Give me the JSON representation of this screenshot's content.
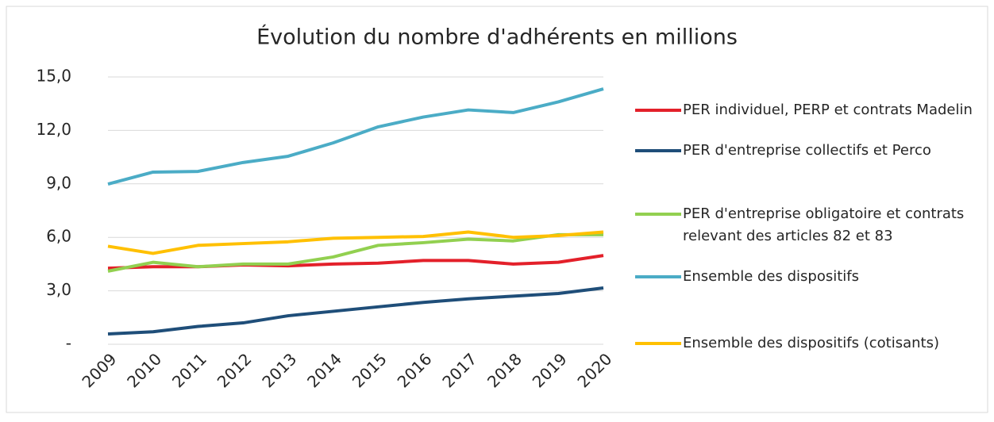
{
  "chart_data": {
    "type": "line",
    "title": "Évolution du nombre d'adhérents en millions",
    "categories": [
      "2009",
      "2010",
      "2011",
      "2012",
      "2013",
      "2014",
      "2015",
      "2016",
      "2017",
      "2018",
      "2019",
      "2020"
    ],
    "series": [
      {
        "name": "PER individuel, PERP et contrats Madelin",
        "color": "#e3202a",
        "values": [
          4.27,
          4.35,
          4.35,
          4.45,
          4.4,
          4.5,
          4.55,
          4.7,
          4.7,
          4.5,
          4.6,
          4.98
        ]
      },
      {
        "name": "PER d'entreprise collectifs et Perco",
        "color": "#1f4e79",
        "values": [
          0.58,
          0.7,
          1.0,
          1.2,
          1.6,
          1.85,
          2.1,
          2.35,
          2.55,
          2.7,
          2.85,
          3.16
        ]
      },
      {
        "name": "PER d'entreprise obligatoire et contrats relevant des articles 82 et 83",
        "color": "#92d050",
        "values": [
          4.1,
          4.6,
          4.35,
          4.5,
          4.5,
          4.9,
          5.55,
          5.7,
          5.9,
          5.8,
          6.15,
          6.15
        ]
      },
      {
        "name": "Ensemble des dispositifs",
        "color": "#4bacc6",
        "values": [
          8.99,
          9.66,
          9.7,
          10.2,
          10.55,
          11.3,
          12.2,
          12.75,
          13.15,
          13.0,
          13.6,
          14.33
        ]
      },
      {
        "name": "Ensemble des dispositifs (cotisants)",
        "color": "#ffc000",
        "values": [
          5.5,
          5.1,
          5.55,
          5.65,
          5.75,
          5.95,
          6.0,
          6.05,
          6.3,
          6.0,
          6.1,
          6.3
        ]
      }
    ],
    "ylim": [
      0,
      15
    ],
    "yticks": [
      {
        "value": 0,
        "label": "-"
      },
      {
        "value": 3,
        "label": "3,0"
      },
      {
        "value": 6,
        "label": "6,0"
      },
      {
        "value": 9,
        "label": "9,0"
      },
      {
        "value": 12,
        "label": "12,0"
      },
      {
        "value": 15,
        "label": "15,0"
      }
    ],
    "grid": true
  }
}
